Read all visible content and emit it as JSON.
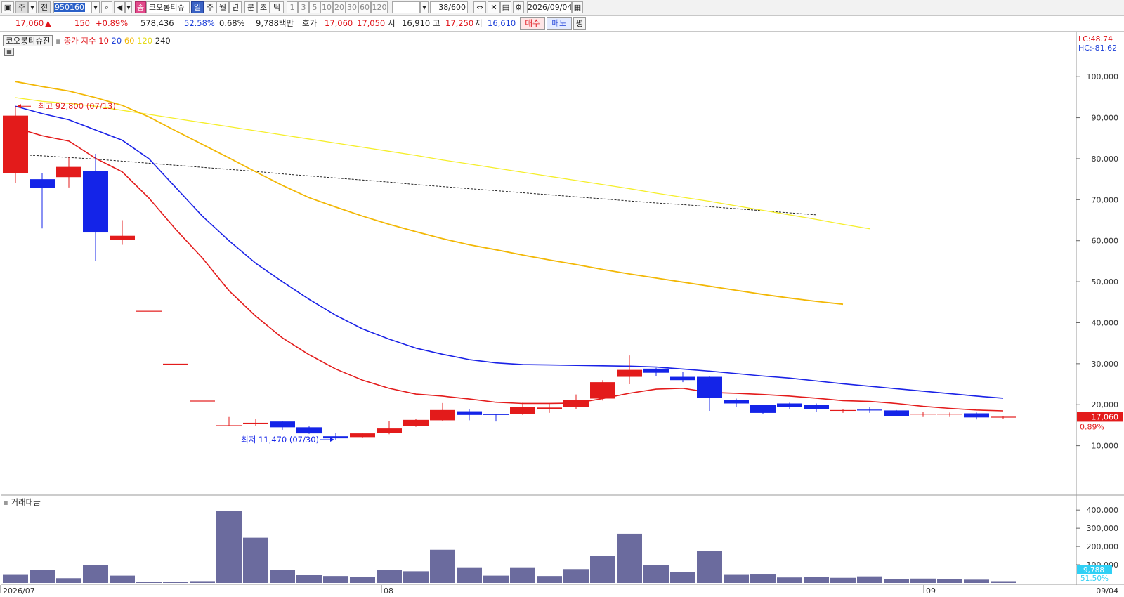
{
  "toolbar": {
    "mode_label": "주",
    "prev_label": "전",
    "stock_code": "950160",
    "stock_type_badge": "종",
    "stock_name": "코오롱티슈",
    "periods": [
      "일",
      "주",
      "월",
      "년",
      "분",
      "초",
      "틱"
    ],
    "active_period": "일",
    "intervals": [
      "1",
      "3",
      "5",
      "10",
      "20",
      "30",
      "60",
      "120"
    ],
    "count_value": "38",
    "count_total": "/600",
    "date_value": "2026/09/04"
  },
  "quote": {
    "price": "17,060",
    "change_arrow": "▲",
    "change": "150",
    "change_pct": "+0.89%",
    "volume": "578,436",
    "volume_ratio": "52.58%",
    "turnover": "0.68%",
    "amount": "9,788백만",
    "ask_label": "호가",
    "ask": "17,060",
    "bid": "17,050",
    "open_label": "시",
    "open": "16,910",
    "high_label": "고",
    "high": "17,250",
    "low_label": "저",
    "low": "16,610",
    "buy_label": "매수",
    "sell_label": "매도",
    "avg_label": "평"
  },
  "chart_legend": {
    "name": "코오롱티슈진",
    "close_label": "종가",
    "index_label": "지수",
    "ma_periods": [
      "10",
      "20",
      "60",
      "120",
      "240"
    ]
  },
  "lc_label": "LC:48.74",
  "hc_label": "HC:-81.62",
  "colors": {
    "up": "#e31b1b",
    "down": "#1424e8",
    "ma10": "#e31b1b",
    "ma20": "#1a22e6",
    "ma60": "#f2b705",
    "ma120": "#f5ee2a",
    "ma240": "#222222",
    "volume": "#6b6b9e"
  },
  "chart_data": {
    "type": "candlestick",
    "y_ticks": [
      "100,000",
      "90,000",
      "80,000",
      "70,000",
      "60,000",
      "50,000",
      "40,000",
      "30,000",
      "20,000",
      "10,000"
    ],
    "ylim": [
      0,
      105000
    ],
    "x_labels": [
      "2026/07",
      "08",
      "09",
      "09/04"
    ],
    "candles": [
      {
        "o": 76500,
        "h": 92800,
        "l": 74000,
        "c": 90500
      },
      {
        "o": 75000,
        "h": 76500,
        "l": 63000,
        "c": 72800
      },
      {
        "o": 75500,
        "h": 80500,
        "l": 73000,
        "c": 78000
      },
      {
        "o": 77000,
        "h": 81200,
        "l": 55000,
        "c": 62000
      },
      {
        "o": 60200,
        "h": 65000,
        "l": 59000,
        "c": 61200
      },
      {
        "o": 42900,
        "h": 42900,
        "l": 42900,
        "c": 42900
      },
      {
        "o": 30000,
        "h": 30000,
        "l": 30000,
        "c": 30000
      },
      {
        "o": 21000,
        "h": 21000,
        "l": 21000,
        "c": 21000
      },
      {
        "o": 14900,
        "h": 17000,
        "l": 14800,
        "c": 15000
      },
      {
        "o": 15300,
        "h": 16500,
        "l": 14800,
        "c": 15600
      },
      {
        "o": 15900,
        "h": 16100,
        "l": 13900,
        "c": 14500
      },
      {
        "o": 14500,
        "h": 14700,
        "l": 12900,
        "c": 13000
      },
      {
        "o": 12300,
        "h": 13100,
        "l": 11470,
        "c": 11800
      },
      {
        "o": 12100,
        "h": 13000,
        "l": 12000,
        "c": 13000
      },
      {
        "o": 13100,
        "h": 16000,
        "l": 12800,
        "c": 14200
      },
      {
        "o": 14800,
        "h": 16500,
        "l": 14600,
        "c": 16300
      },
      {
        "o": 16200,
        "h": 20400,
        "l": 16000,
        "c": 18700
      },
      {
        "o": 18400,
        "h": 19000,
        "l": 16200,
        "c": 17500
      },
      {
        "o": 17700,
        "h": 17700,
        "l": 15900,
        "c": 17500
      },
      {
        "o": 17800,
        "h": 20500,
        "l": 17500,
        "c": 19500
      },
      {
        "o": 19000,
        "h": 20200,
        "l": 18000,
        "c": 19300
      },
      {
        "o": 19500,
        "h": 22500,
        "l": 19000,
        "c": 21200
      },
      {
        "o": 21500,
        "h": 26000,
        "l": 21000,
        "c": 25500
      },
      {
        "o": 26800,
        "h": 32000,
        "l": 25000,
        "c": 28500
      },
      {
        "o": 28800,
        "h": 29000,
        "l": 27000,
        "c": 27800
      },
      {
        "o": 26800,
        "h": 28000,
        "l": 25500,
        "c": 26000
      },
      {
        "o": 26800,
        "h": 26900,
        "l": 18500,
        "c": 21700
      },
      {
        "o": 21200,
        "h": 21500,
        "l": 19500,
        "c": 20300
      },
      {
        "o": 19900,
        "h": 20000,
        "l": 17800,
        "c": 18000
      },
      {
        "o": 20300,
        "h": 20500,
        "l": 19000,
        "c": 19500
      },
      {
        "o": 19900,
        "h": 20300,
        "l": 18300,
        "c": 18900
      },
      {
        "o": 18500,
        "h": 19000,
        "l": 18000,
        "c": 18700
      },
      {
        "o": 18800,
        "h": 19500,
        "l": 18000,
        "c": 18600
      },
      {
        "o": 18600,
        "h": 18700,
        "l": 17200,
        "c": 17300
      },
      {
        "o": 17700,
        "h": 18200,
        "l": 17000,
        "c": 17800
      },
      {
        "o": 17700,
        "h": 18100,
        "l": 17000,
        "c": 17800
      },
      {
        "o": 17900,
        "h": 18100,
        "l": 16400,
        "c": 16900
      },
      {
        "o": 16910,
        "h": 17250,
        "l": 16610,
        "c": 17060
      }
    ],
    "ma10": [
      87500,
      85600,
      84300,
      80100,
      76800,
      70400,
      62800,
      55800,
      47800,
      41600,
      36300,
      32200,
      28700,
      26000,
      24000,
      22600,
      22100,
      21400,
      20600,
      20300,
      20300,
      20400,
      21500,
      22800,
      23800,
      24000,
      23000,
      22800,
      22500,
      22100,
      21600,
      21000,
      20800,
      20300,
      19600,
      19100,
      18700,
      18500
    ],
    "ma20": [
      92800,
      91000,
      89500,
      87000,
      84500,
      80000,
      73000,
      66000,
      60000,
      54500,
      50000,
      45700,
      41800,
      38500,
      36000,
      33800,
      32300,
      31000,
      30200,
      29800,
      29700,
      29600,
      29500,
      29400,
      29200,
      28700,
      28200,
      27600,
      27000,
      26500,
      25800,
      25100,
      24500,
      23900,
      23300,
      22700,
      22100,
      21600
    ],
    "ma60": [
      98800,
      97600,
      96500,
      94900,
      93000,
      90200,
      86800,
      83500,
      80200,
      76800,
      73500,
      70500,
      68200,
      66000,
      64000,
      62200,
      60500,
      59000,
      57800,
      56500,
      55300,
      54200,
      53000,
      51900,
      50900,
      49900,
      48900,
      47900,
      46900,
      46000,
      45200,
      44500
    ],
    "ma120": [
      94900,
      94000,
      93500,
      92800,
      91800,
      90800,
      89800,
      88800,
      87800,
      86800,
      85800,
      84800,
      83800,
      82800,
      81800,
      80800,
      79700,
      78700,
      77700,
      76700,
      75700,
      74700,
      73700,
      72700,
      71600,
      70600,
      69600,
      68500,
      67400,
      66300,
      65200,
      64000,
      62900
    ],
    "ma240": [
      81000,
      80700,
      80300,
      79900,
      79400,
      78900,
      78400,
      77900,
      77400,
      76900,
      76300,
      75800,
      75300,
      74800,
      74300,
      73700,
      73200,
      72700,
      72200,
      71700,
      71200,
      70700,
      70200,
      69700,
      69200,
      68800,
      68300,
      67800,
      67300,
      66800,
      66300
    ],
    "annotations": {
      "high": "최고 92,800 (07/13)",
      "low": "최저 11,470 (07/30)"
    },
    "last_price_label": "17,060",
    "last_pct_label": "0.89%"
  },
  "volume_panel": {
    "title": "거래대금",
    "y_ticks": [
      "400,000",
      "300,000",
      "200,000",
      "100,000"
    ],
    "ylim": [
      0,
      420000
    ],
    "values": [
      48000,
      72000,
      26000,
      98000,
      40000,
      4000,
      6000,
      10000,
      395000,
      248000,
      72000,
      44000,
      38000,
      32000,
      70000,
      64000,
      182000,
      86000,
      40000,
      86000,
      38000,
      76000,
      148000,
      270000,
      98000,
      58000,
      175000,
      48000,
      50000,
      30000,
      32000,
      28000,
      36000,
      20000,
      24000,
      20000,
      18000,
      9788
    ],
    "current_label": "9,788",
    "pct_label": "51.50%"
  }
}
